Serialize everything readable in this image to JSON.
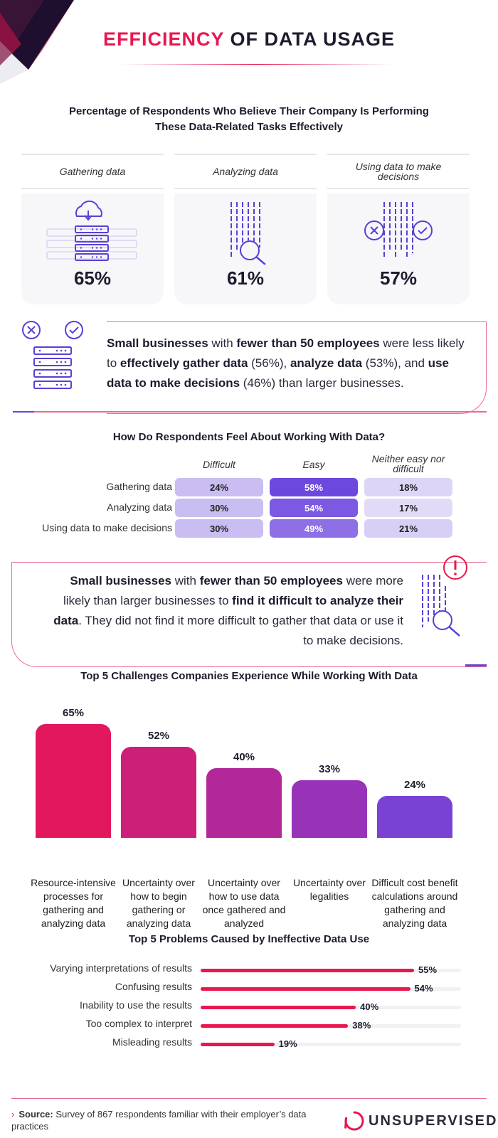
{
  "header": {
    "title_accent": "EFFICIENCY",
    "title_rest": "OF DATA USAGE"
  },
  "effectiveness": {
    "title_line1": "Percentage of Respondents Who Believe Their Company Is Performing",
    "title_line2": "These Data-Related Tasks Effectively",
    "cards": [
      {
        "label": "Gathering data",
        "value": "65%",
        "icon": "cloud-server-icon"
      },
      {
        "label": "Analyzing data",
        "value": "61%",
        "icon": "magnifier-data-icon"
      },
      {
        "label": "Using data to make decisions",
        "value": "57%",
        "icon": "decision-icon"
      }
    ]
  },
  "callout1": {
    "t1": "Small businesses",
    "t2": " with ",
    "t3": "fewer than 50 employees",
    "t4": " were less likely to ",
    "t5": "effectively gather data",
    "t6": " (56%), ",
    "t7": "analyze data",
    "t8": " (53%), and ",
    "t9": "use data to make decisions",
    "t10": " (46%) than larger businesses."
  },
  "feelings": {
    "title": "How Do Respondents Feel About Working With Data?",
    "columns": [
      "Difficult",
      "Easy",
      "Neither easy nor difficult"
    ],
    "rows": [
      {
        "label": "Gathering data",
        "values": [
          "24%",
          "58%",
          "18%"
        ]
      },
      {
        "label": "Analyzing data",
        "values": [
          "30%",
          "54%",
          "17%"
        ]
      },
      {
        "label": "Using data to make decisions",
        "values": [
          "30%",
          "49%",
          "21%"
        ]
      }
    ],
    "colors": {
      "difficult": "#c9bdf2",
      "easy": [
        "#6c48de",
        "#7b59e2",
        "#8d70e6"
      ],
      "neither": [
        "#ddd5f7",
        "#e2dbf8",
        "#d8cff6"
      ]
    }
  },
  "callout2": {
    "t1": "Small businesses",
    "t2": " with ",
    "t3": "fewer than 50 employees",
    "t4": " were more likely than larger businesses to ",
    "t5": "find it difficult to analyze their data",
    "t6": ". They did not find it more difficult to gather that data or use it to make decisions."
  },
  "challenges": {
    "title": "Top 5 Challenges Companies Experience While Working With Data",
    "colors": [
      "#e3175e",
      "#cc1f78",
      "#b2289a",
      "#9832b8",
      "#7a42d4"
    ]
  },
  "problems": {
    "title": "Top 5 Problems Caused by Ineffective Data Use",
    "color": "#e8174f"
  },
  "chart_data": [
    {
      "type": "bar",
      "title": "Percentage of Respondents Who Believe Their Company Is Performing These Data-Related Tasks Effectively",
      "categories": [
        "Gathering data",
        "Analyzing data",
        "Using data to make decisions"
      ],
      "values": [
        65,
        61,
        57
      ]
    },
    {
      "type": "table",
      "title": "How Do Respondents Feel About Working With Data?",
      "columns": [
        "Difficult",
        "Easy",
        "Neither easy nor difficult"
      ],
      "rows": [
        "Gathering data",
        "Analyzing data",
        "Using data to make decisions"
      ],
      "values": [
        [
          24,
          58,
          18
        ],
        [
          30,
          54,
          17
        ],
        [
          30,
          49,
          21
        ]
      ]
    },
    {
      "type": "bar",
      "title": "Top 5 Challenges Companies Experience While Working With Data",
      "categories": [
        "Resource-intensive processes for gathering and analyzing data",
        "Uncertainty over how to begin gathering or analyzing data",
        "Uncertainty over how to use data once gathered and analyzed",
        "Uncertainty over legalities",
        "Difficult cost benefit calculations around gathering and analyzing data"
      ],
      "values": [
        65,
        52,
        40,
        33,
        24
      ],
      "ylim": [
        0,
        65
      ]
    },
    {
      "type": "bar",
      "orientation": "horizontal",
      "title": "Top 5 Problems Caused by Ineffective Data Use",
      "categories": [
        "Varying interpretations of results",
        "Confusing results",
        "Inability to use the results",
        "Too complex to interpret",
        "Misleading results"
      ],
      "values": [
        55,
        54,
        40,
        38,
        19
      ]
    }
  ],
  "footer": {
    "source_label": "Source:",
    "source_text": " Survey of 867 respondents familiar with their employer’s data practices",
    "brand": "UNSUPERVISED"
  }
}
